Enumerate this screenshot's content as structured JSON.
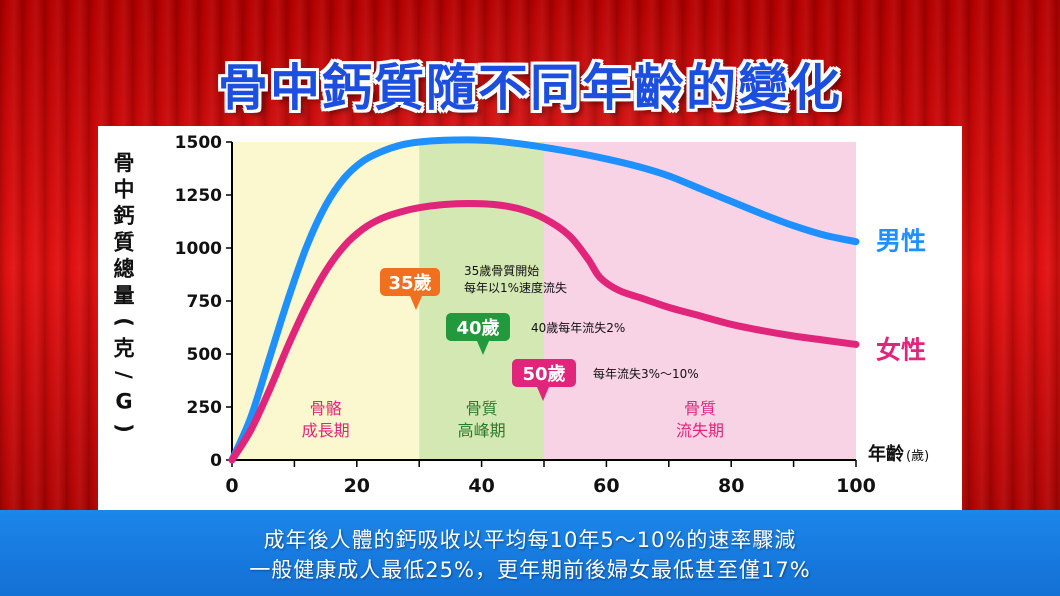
{
  "title": "骨中鈣質隨不同年齡的變化",
  "footer": {
    "line1": "成年後人體的鈣吸收以平均每10年5～10%的速率驟減",
    "line2": "一般健康成人最低25%，更年期前後婦女最低甚至僅17%"
  },
  "colors": {
    "male": "#1e90ff",
    "female": "#e0257a",
    "zone_growth": "#fbf7cf",
    "zone_peak": "#d4e8b4",
    "zone_loss": "#f8d3e6",
    "callout_35": "#f07020",
    "callout_40": "#21993c",
    "callout_50": "#e0257a"
  },
  "chart_data": {
    "type": "line",
    "ylabel": "骨中鈣質總量(克/G)",
    "xlabel_main": "年齡",
    "xlabel_unit": "(歲)",
    "xlim": [
      0,
      100
    ],
    "ylim": [
      0,
      1500
    ],
    "x_ticks": [
      0,
      20,
      40,
      60,
      80,
      100
    ],
    "y_ticks": [
      0,
      250,
      500,
      750,
      1000,
      1250,
      1500
    ],
    "grid": false,
    "zones": [
      {
        "from": 0,
        "to": 30,
        "label1": "骨骼",
        "label2": "成長期",
        "color_key": "zone_growth"
      },
      {
        "from": 30,
        "to": 50,
        "label1": "骨質",
        "label2": "高峰期",
        "color_key": "zone_peak"
      },
      {
        "from": 50,
        "to": 100,
        "label1": "骨質",
        "label2": "流失期",
        "color_key": "zone_loss"
      }
    ],
    "series": [
      {
        "name": "男性",
        "color_key": "male",
        "points": [
          [
            0,
            0
          ],
          [
            3,
            200
          ],
          [
            6,
            480
          ],
          [
            9,
            760
          ],
          [
            12,
            1010
          ],
          [
            15,
            1200
          ],
          [
            18,
            1330
          ],
          [
            21,
            1410
          ],
          [
            24,
            1455
          ],
          [
            27,
            1485
          ],
          [
            30,
            1500
          ],
          [
            34,
            1508
          ],
          [
            38,
            1510
          ],
          [
            42,
            1505
          ],
          [
            46,
            1492
          ],
          [
            50,
            1475
          ],
          [
            55,
            1450
          ],
          [
            60,
            1420
          ],
          [
            65,
            1385
          ],
          [
            70,
            1340
          ],
          [
            75,
            1280
          ],
          [
            80,
            1220
          ],
          [
            85,
            1160
          ],
          [
            90,
            1105
          ],
          [
            95,
            1060
          ],
          [
            100,
            1030
          ]
        ]
      },
      {
        "name": "女性",
        "color_key": "female",
        "points": [
          [
            0,
            0
          ],
          [
            3,
            140
          ],
          [
            6,
            330
          ],
          [
            9,
            540
          ],
          [
            12,
            730
          ],
          [
            15,
            890
          ],
          [
            18,
            1010
          ],
          [
            21,
            1090
          ],
          [
            24,
            1140
          ],
          [
            27,
            1170
          ],
          [
            30,
            1190
          ],
          [
            34,
            1205
          ],
          [
            38,
            1210
          ],
          [
            42,
            1205
          ],
          [
            46,
            1185
          ],
          [
            50,
            1140
          ],
          [
            54,
            1060
          ],
          [
            57,
            950
          ],
          [
            59,
            860
          ],
          [
            62,
            800
          ],
          [
            66,
            760
          ],
          [
            70,
            720
          ],
          [
            75,
            680
          ],
          [
            80,
            640
          ],
          [
            85,
            610
          ],
          [
            90,
            585
          ],
          [
            95,
            565
          ],
          [
            100,
            545
          ]
        ]
      }
    ],
    "callouts": [
      {
        "badge": "35歲",
        "text1": "35歲骨質開始",
        "text2": "每年以1%速度流失",
        "color_key": "callout_35"
      },
      {
        "badge": "40歲",
        "text1": "40歲每年流失2%",
        "text2": "",
        "color_key": "callout_40"
      },
      {
        "badge": "50歲",
        "text1": "每年流失3%～10%",
        "text2": "",
        "color_key": "callout_50"
      }
    ]
  }
}
